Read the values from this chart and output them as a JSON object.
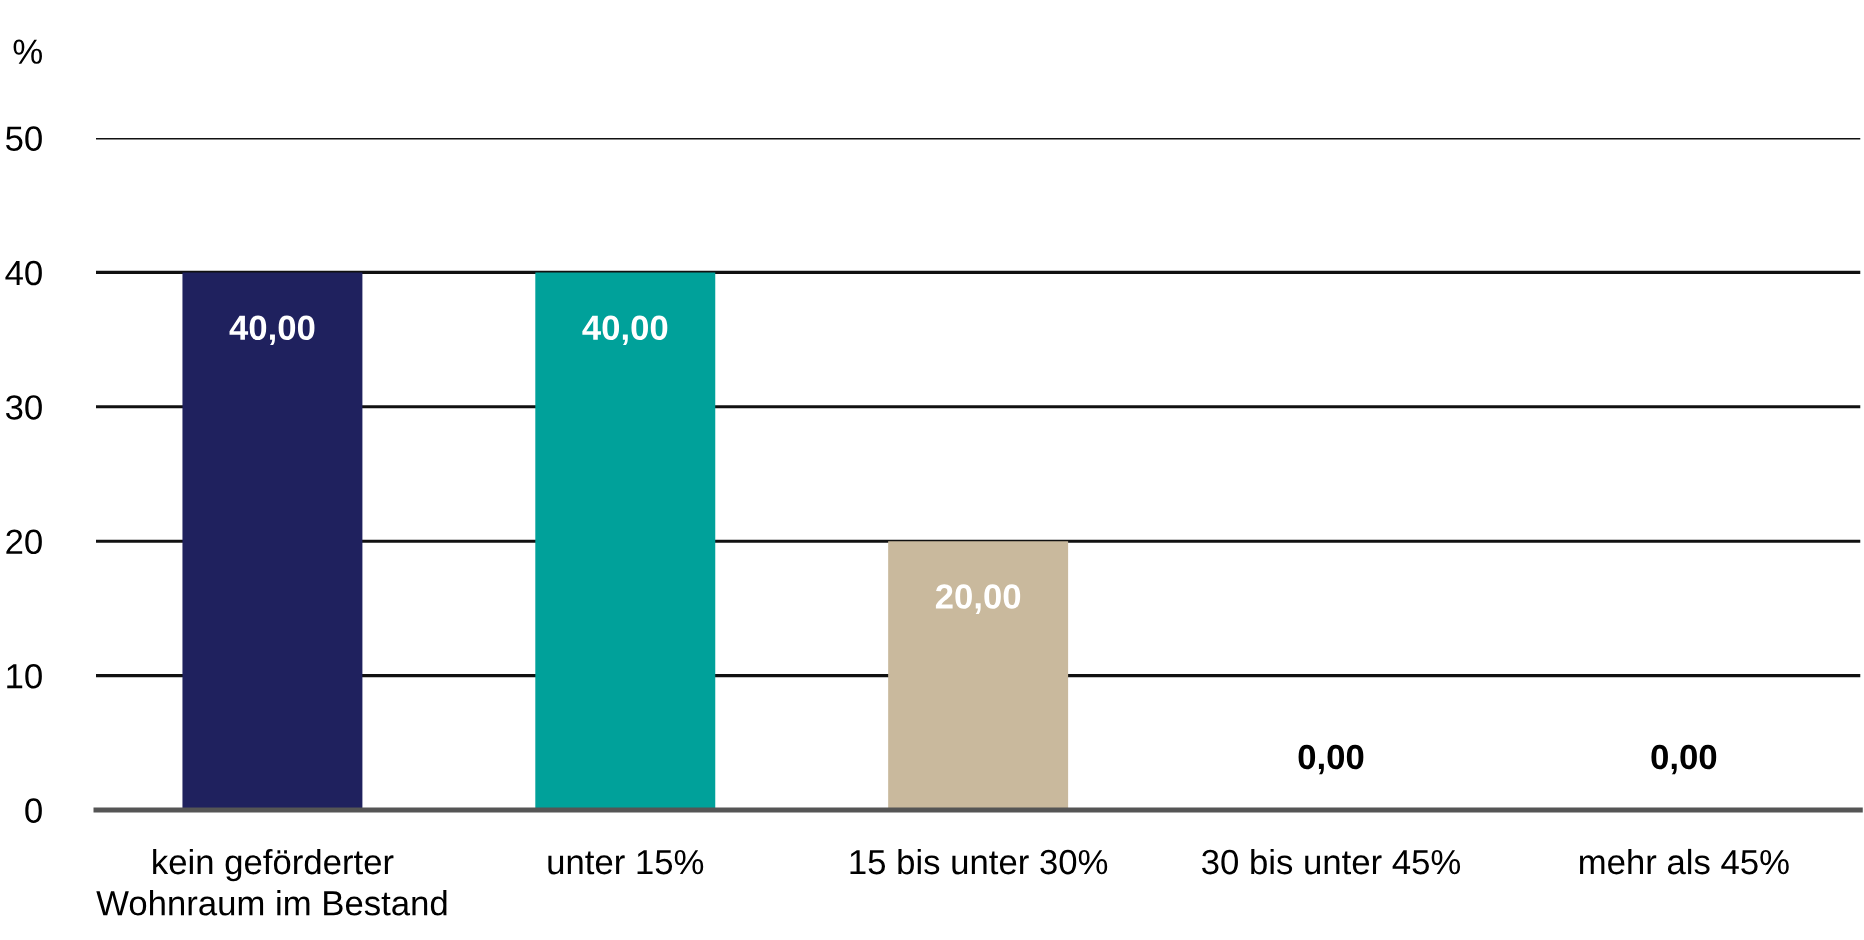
{
  "chart_data": {
    "type": "bar",
    "ylabel": "%",
    "categories": [
      "kein geförderter\nWohnraum im Bestand",
      "unter 15%",
      "15 bis unter 30%",
      "30 bis unter 45%",
      "mehr als 45%"
    ],
    "values": [
      40,
      40,
      20,
      0,
      0
    ],
    "colors": [
      "#1f215e",
      "#00a19a",
      "#c9b99d",
      "#1f215e",
      "#1f215e"
    ],
    "value_labels": [
      "40,00",
      "40,00",
      "20,00",
      "0,00",
      "0,00"
    ],
    "ylim": [
      0,
      50
    ],
    "yticks": [
      0,
      10,
      20,
      30,
      40,
      50
    ],
    "grid": "y"
  }
}
